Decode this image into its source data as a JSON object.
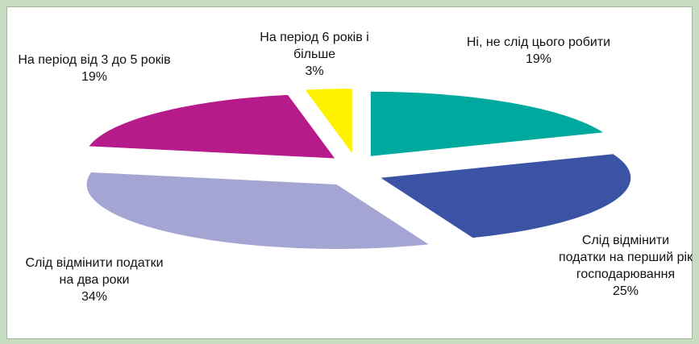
{
  "chart_data": {
    "type": "pie",
    "categories": [
      "Ні, не слід цього робити",
      "Слід відмінити податки на перший рік господарювання",
      "Слід відмінити податки на два роки",
      "На період від 3 до 5 років",
      "На період 6 років і більше"
    ],
    "values": [
      19,
      25,
      34,
      19,
      3
    ],
    "value_labels": [
      "19%",
      "25%",
      "34%",
      "19%",
      "3%"
    ],
    "colors": [
      "#00a99d",
      "#3a53a4",
      "#a5a5d3",
      "#b71a8b",
      "#fff200"
    ]
  }
}
